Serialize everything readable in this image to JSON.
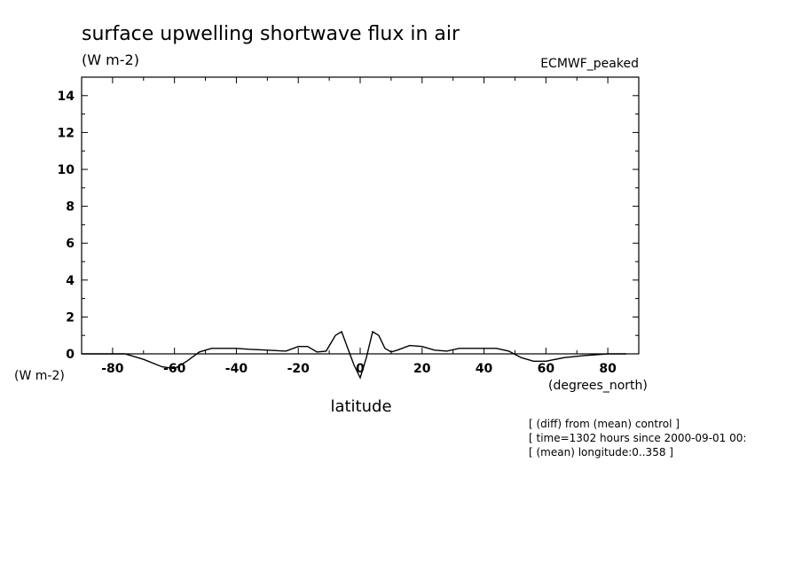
{
  "chart_data": {
    "type": "line",
    "title": "surface upwelling shortwave flux in air",
    "units_top": "(W m-2)",
    "units_left": "(W m-2)",
    "label_right": "ECMWF_peaked",
    "xlabel": "latitude",
    "xunits": "(degrees_north)",
    "xlim": [
      -90,
      90
    ],
    "ylim": [
      0,
      15
    ],
    "xticks_major": [
      -80,
      -60,
      -40,
      -20,
      0,
      20,
      40,
      60,
      80
    ],
    "xtick_labels": [
      "-80",
      "-60",
      "-40",
      "-20",
      "0",
      "20",
      "40",
      "60",
      "80"
    ],
    "yticks_major": [
      0,
      2,
      4,
      6,
      8,
      10,
      12,
      14
    ],
    "ytick_labels": [
      "0",
      "2",
      "4",
      "6",
      "8",
      "10",
      "12",
      "14"
    ],
    "series": [
      {
        "x": [
          -90,
          -76,
          -70,
          -64,
          -60,
          -56,
          -52,
          -48,
          -44,
          -40,
          -36,
          -30,
          -24,
          -20,
          -17,
          -14,
          -11,
          -8,
          -6,
          -4,
          -2,
          0,
          2,
          4,
          6,
          8,
          10,
          12,
          16,
          20,
          24,
          28,
          32,
          36,
          40,
          44,
          48,
          52,
          56,
          60,
          66,
          72,
          80,
          86
        ],
        "y": [
          0.0,
          0.0,
          -0.3,
          -0.7,
          -0.8,
          -0.4,
          0.1,
          0.3,
          0.3,
          0.3,
          0.25,
          0.2,
          0.15,
          0.4,
          0.4,
          0.1,
          0.15,
          1.0,
          1.2,
          0.3,
          -0.6,
          -1.3,
          -0.2,
          1.2,
          1.0,
          0.3,
          0.1,
          0.2,
          0.45,
          0.4,
          0.2,
          0.15,
          0.3,
          0.3,
          0.3,
          0.3,
          0.15,
          -0.2,
          -0.4,
          -0.4,
          -0.2,
          -0.1,
          0.0,
          0.0
        ]
      }
    ]
  },
  "notes": [
    "[ (diff) from (mean) control ]",
    "[ time=1302 hours since 2000-09-01 00:",
    "[ (mean) longitude:0..358 ]"
  ]
}
